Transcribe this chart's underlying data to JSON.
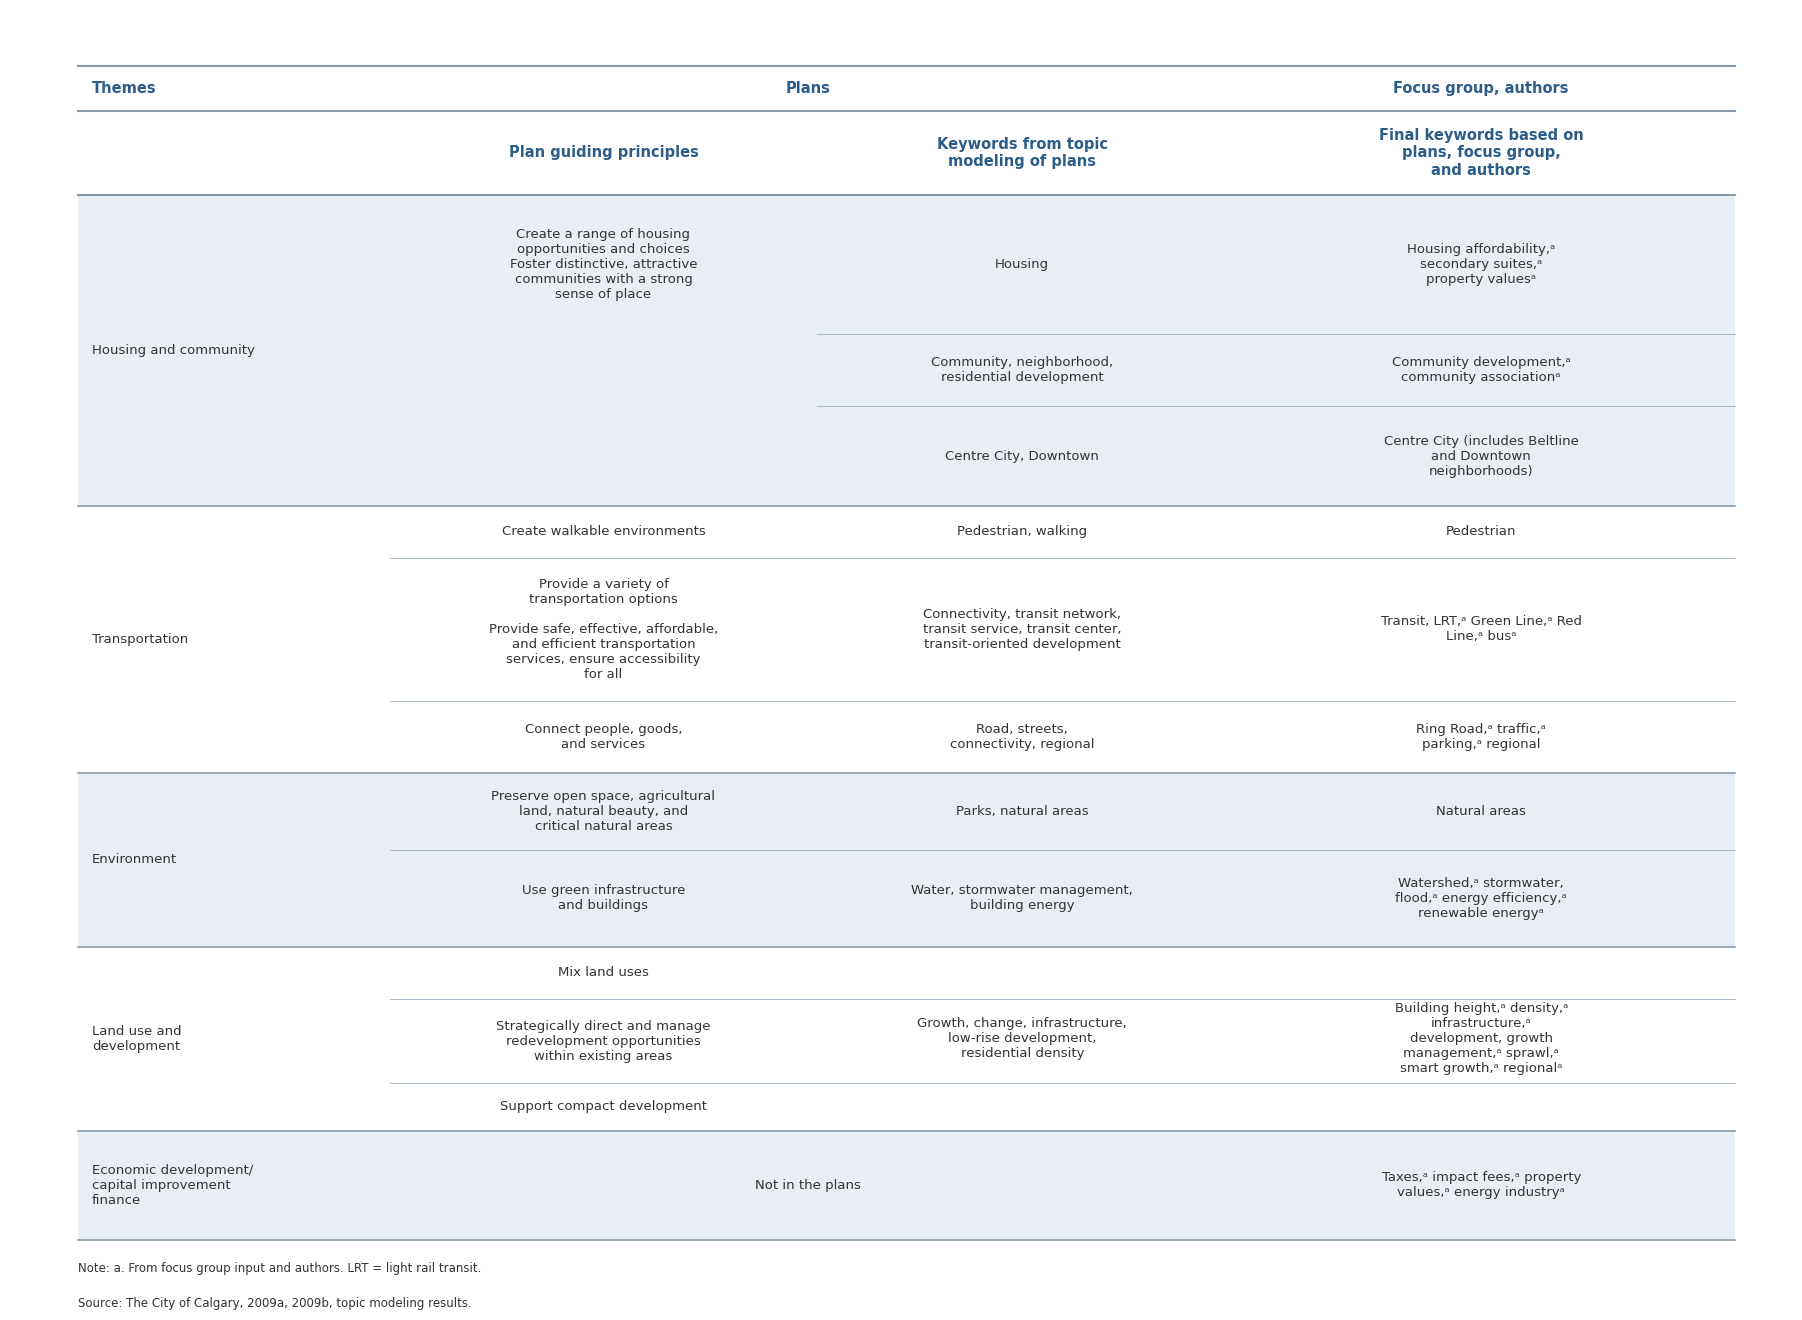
{
  "col_header_color": "#2B5C8A",
  "bg_color_light": "#E8EEF4",
  "bg_color_white": "#FFFFFF",
  "separator_color_heavy": "#8899AA",
  "separator_color_light": "#AABBCC",
  "text_color_body": "#333333",
  "note_text_line1": "Note: a. From focus group input and authors. LRT = light rail transit.",
  "note_text_line2": "Source: The City of Calgary, 2009a, 2009b, topic modeling results.",
  "header1": [
    "Themes",
    "Plans",
    "Focus group, authors"
  ],
  "header2_col1": "Plan guiding principles",
  "header2_col2": "Keywords from topic\nmodeling of plans",
  "header2_col3": "Final keywords based on\nplans, focus group,\nand authors",
  "rows": [
    {
      "theme": "Housing and community",
      "sub_rows": [
        {
          "plan_principle": "Create a range of housing\nopportunities and choices\nFoster distinctive, attractive\ncommunities with a strong\nsense of place",
          "keywords": "Housing",
          "final_keywords": "Housing affordability,ᵃ\nsecondary suites,ᵃ\nproperty valuesᵃ",
          "merged_principle": true
        },
        {
          "plan_principle": "",
          "keywords": "Community, neighborhood,\nresidential development",
          "final_keywords": "Community development,ᵃ\ncommunity associationᵃ",
          "merged_principle": true
        },
        {
          "plan_principle": "",
          "keywords": "Centre City, Downtown",
          "final_keywords": "Centre City (includes Beltline\nand Downtown\nneighborhoods)",
          "merged_principle": true
        }
      ]
    },
    {
      "theme": "Transportation",
      "sub_rows": [
        {
          "plan_principle": "Create walkable environments",
          "keywords": "Pedestrian, walking",
          "final_keywords": "Pedestrian",
          "merged_principle": false
        },
        {
          "plan_principle": "Provide a variety of\ntransportation options\n\nProvide safe, effective, affordable,\nand efficient transportation\nservices, ensure accessibility\nfor all",
          "keywords": "Connectivity, transit network,\ntransit service, transit center,\ntransit-oriented development",
          "final_keywords": "Transit, LRT,ᵃ Green Line,ᵃ Red\nLine,ᵃ busᵃ",
          "merged_principle": false
        },
        {
          "plan_principle": "Connect people, goods,\nand services",
          "keywords": "Road, streets,\nconnectivity, regional",
          "final_keywords": "Ring Road,ᵃ traffic,ᵃ\nparking,ᵃ regional",
          "merged_principle": false
        }
      ]
    },
    {
      "theme": "Environment",
      "sub_rows": [
        {
          "plan_principle": "Preserve open space, agricultural\nland, natural beauty, and\ncritical natural areas",
          "keywords": "Parks, natural areas",
          "final_keywords": "Natural areas",
          "merged_principle": false
        },
        {
          "plan_principle": "Use green infrastructure\nand buildings",
          "keywords": "Water, stormwater management,\nbuilding energy",
          "final_keywords": "Watershed,ᵃ stormwater,\nflood,ᵃ energy efficiency,ᵃ\nrenewable energyᵃ",
          "merged_principle": false
        }
      ]
    },
    {
      "theme": "Land use and\ndevelopment",
      "sub_rows": [
        {
          "plan_principle": "Mix land uses",
          "keywords": "Growth, change, infrastructure,\nlow-rise development,\nresidential density",
          "final_keywords": "Building height,ᵃ density,ᵃ\ninfrastructure,ᵃ\ndevelopment, growth\nmanagement,ᵃ sprawl,ᵃ\nsmart growth,ᵃ regionalᵃ",
          "merged_principle": false,
          "keywords_span": true
        },
        {
          "plan_principle": "Strategically direct and manage\nredevelopment opportunities\nwithin existing areas",
          "keywords": "",
          "final_keywords": "",
          "merged_principle": false,
          "keywords_span": true
        },
        {
          "plan_principle": "Support compact development",
          "keywords": "",
          "final_keywords": "",
          "merged_principle": false,
          "keywords_span": true
        }
      ]
    },
    {
      "theme": "Economic development/\ncapital improvement\nfinance",
      "sub_rows": [
        {
          "plan_principle": "Not in the plans",
          "keywords": "",
          "final_keywords": "Taxes,ᵃ impact fees,ᵃ property\nvalues,ᵃ energy industryᵃ",
          "merged_principle": false,
          "merge_plan_kw": true
        }
      ]
    }
  ],
  "row_heights": [
    [
      0.112,
      0.058,
      0.08
    ],
    [
      0.042,
      0.115,
      0.058
    ],
    [
      0.062,
      0.078
    ],
    [
      0.042,
      0.068,
      0.038
    ],
    [
      0.088
    ]
  ]
}
